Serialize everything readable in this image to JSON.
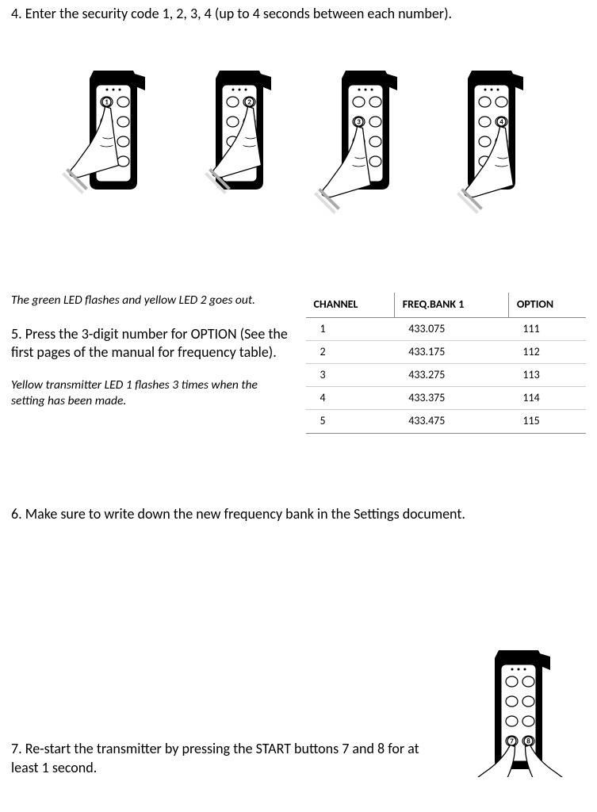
{
  "step4": {
    "text": "4. Enter the security code 1, 2, 3, 4 (up to 4 seconds between each number)."
  },
  "remotes": [
    {
      "press_label": "1",
      "press_row": 0,
      "press_col": 0
    },
    {
      "press_label": "2",
      "press_row": 0,
      "press_col": 1
    },
    {
      "press_label": "3",
      "press_row": 1,
      "press_col": 0
    },
    {
      "press_label": "4",
      "press_row": 1,
      "press_col": 1
    }
  ],
  "italic1": "The green LED flashes and yellow LED 2 goes out.",
  "step5": {
    "text": "5. Press the 3-digit number for OPTION (See the first pages of the manual for frequency table)."
  },
  "italic2": "Yellow transmitter LED 1 flashes 3 times when the setting has been made.",
  "table": {
    "headers": [
      "CHANNEL",
      "FREQ.BANK 1",
      "OPTION"
    ],
    "rows": [
      [
        "1",
        "433.075",
        "111"
      ],
      [
        "2",
        "433.175",
        "112"
      ],
      [
        "3",
        "433.275",
        "113"
      ],
      [
        "4",
        "433.375",
        "114"
      ],
      [
        "5",
        "433.475",
        "115"
      ]
    ]
  },
  "step6": {
    "text": "6. Make sure to write down the new frequency bank in the Settings document."
  },
  "step7": {
    "text": "7. Re-start the transmitter by pressing the START buttons 7 and 8 for at least 1 second.",
    "labels": [
      "7",
      "8"
    ]
  },
  "colors": {
    "black": "#000000",
    "white": "#ffffff",
    "gray": "#cccccc"
  }
}
